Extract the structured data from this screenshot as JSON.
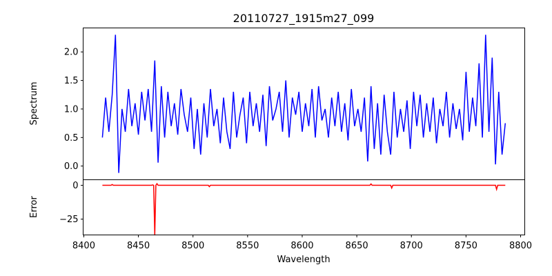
{
  "chart_data": [
    {
      "type": "line",
      "title": "20110727_1915m27_099",
      "ylabel": "Spectrum",
      "xlabel": "",
      "xlim": [
        8399.4,
        8803.8
      ],
      "ylim": [
        -0.24,
        2.42
      ],
      "yticks": [
        "0.0",
        "0.5",
        "1.0",
        "1.5",
        "2.0"
      ],
      "color": "#0000ff",
      "x_start": 8417,
      "x_step": 3,
      "values": [
        0.5,
        1.2,
        0.6,
        1.25,
        2.3,
        -0.12,
        1.0,
        0.6,
        1.35,
        0.7,
        1.1,
        0.55,
        1.3,
        0.8,
        1.35,
        0.6,
        1.85,
        0.06,
        1.4,
        0.5,
        1.3,
        0.7,
        1.1,
        0.55,
        1.35,
        0.9,
        0.6,
        1.2,
        0.3,
        1.0,
        0.2,
        1.1,
        0.5,
        1.35,
        0.7,
        1.0,
        0.4,
        1.2,
        0.6,
        0.3,
        1.3,
        0.5,
        0.9,
        1.2,
        0.4,
        1.3,
        0.7,
        1.1,
        0.6,
        1.25,
        0.35,
        1.4,
        0.8,
        1.0,
        1.3,
        0.6,
        1.5,
        0.5,
        1.2,
        0.9,
        1.3,
        0.6,
        1.1,
        0.7,
        1.35,
        0.5,
        1.4,
        0.8,
        1.0,
        0.5,
        1.2,
        0.7,
        1.3,
        0.6,
        1.1,
        0.45,
        1.35,
        0.7,
        1.0,
        0.6,
        1.2,
        0.08,
        1.4,
        0.3,
        1.1,
        0.2,
        1.25,
        0.6,
        0.2,
        1.3,
        0.5,
        1.0,
        0.6,
        1.15,
        0.3,
        1.3,
        0.7,
        1.25,
        0.5,
        1.1,
        0.6,
        1.2,
        0.4,
        1.0,
        0.7,
        1.3,
        0.5,
        1.1,
        0.65,
        1.0,
        0.45,
        1.65,
        0.6,
        1.2,
        0.7,
        1.8,
        0.5,
        2.3,
        0.6,
        1.9,
        0.03,
        1.3,
        0.2,
        0.75
      ]
    },
    {
      "type": "line",
      "ylabel": "Error",
      "xlabel": "Wavelength",
      "xlim": [
        8399.4,
        8803.8
      ],
      "ylim": [
        -36.7,
        4.1
      ],
      "yticks": [
        "0",
        "−25"
      ],
      "ytick_values": [
        0,
        -25
      ],
      "xticks": [
        "8400",
        "8450",
        "8500",
        "8550",
        "8600",
        "8650",
        "8700",
        "8750",
        "8800"
      ],
      "color": "#ff0000",
      "points": [
        [
          8417,
          0
        ],
        [
          8425,
          0
        ],
        [
          8426,
          0.6
        ],
        [
          8427,
          0
        ],
        [
          8462,
          0
        ],
        [
          8463,
          0.3
        ],
        [
          8464,
          0
        ],
        [
          8465,
          -37
        ],
        [
          8466,
          0
        ],
        [
          8467,
          1.2
        ],
        [
          8468,
          0
        ],
        [
          8514,
          0
        ],
        [
          8515,
          -1
        ],
        [
          8516,
          0
        ],
        [
          8662,
          0
        ],
        [
          8663,
          1
        ],
        [
          8664,
          0
        ],
        [
          8681,
          0
        ],
        [
          8682,
          -2
        ],
        [
          8683,
          0
        ],
        [
          8777,
          0
        ],
        [
          8778,
          -3
        ],
        [
          8779,
          0
        ],
        [
          8786,
          0
        ]
      ]
    }
  ]
}
